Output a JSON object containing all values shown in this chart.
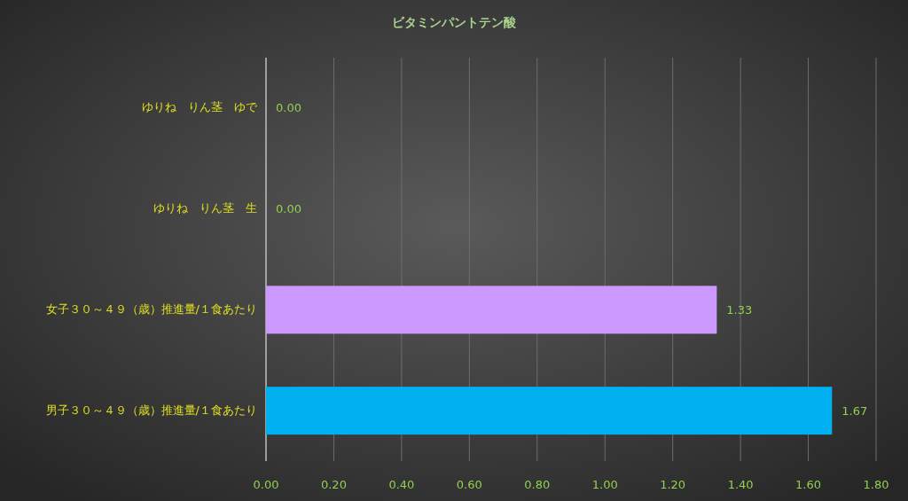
{
  "chart_data": {
    "type": "bar",
    "orientation": "horizontal",
    "title": "ビタミンパントテン酸",
    "categories": [
      "ゆりね　りん茎　ゆで",
      "ゆりね　りん茎　生",
      "女子３０～４９（歳）推進量/１食あたり",
      "男子３０～４９（歳）推進量/１食あたり"
    ],
    "values": [
      0,
      0,
      1.33,
      1.67
    ],
    "colors": [
      "#cc99ff",
      "#cc99ff",
      "#cc99ff",
      "#00b0f0"
    ],
    "value_labels": [
      "0.00",
      "0.00",
      "1.33",
      "1.67"
    ],
    "xlim": [
      0,
      1.8
    ],
    "xticks": [
      {
        "value": 0,
        "label": "0.00"
      },
      {
        "value": 0.2,
        "label": "0.20"
      },
      {
        "value": 0.4,
        "label": "0.40"
      },
      {
        "value": 0.6,
        "label": "0.60"
      },
      {
        "value": 0.8,
        "label": "0.80"
      },
      {
        "value": 1,
        "label": "1.00"
      },
      {
        "value": 1.2,
        "label": "1.20"
      },
      {
        "value": 1.4,
        "label": "1.40"
      },
      {
        "value": 1.6,
        "label": "1.60"
      },
      {
        "value": 1.8,
        "label": "1.80"
      }
    ],
    "grid": "x"
  }
}
